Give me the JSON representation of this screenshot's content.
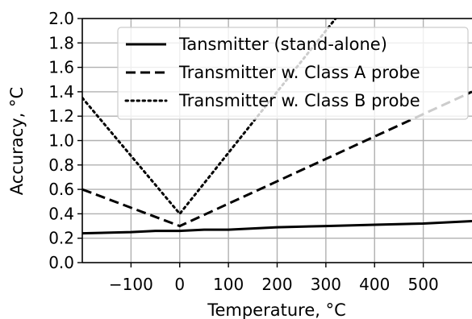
{
  "chart_data": {
    "type": "line",
    "xlabel": "Temperature, °C",
    "ylabel": "Accuracy, °C",
    "xlim": [
      -200,
      600
    ],
    "ylim": [
      0.0,
      2.0
    ],
    "xticks": [
      -100,
      0,
      100,
      200,
      300,
      400,
      500
    ],
    "xtick_labels": [
      "−100",
      "0",
      "100",
      "200",
      "300",
      "400",
      "500"
    ],
    "yticks": [
      0.0,
      0.2,
      0.4,
      0.6,
      0.8,
      1.0,
      1.2,
      1.4,
      1.6,
      1.8,
      2.0
    ],
    "ytick_labels": [
      "0.0",
      "0.2",
      "0.4",
      "0.6",
      "0.8",
      "1.0",
      "1.2",
      "1.4",
      "1.6",
      "1.8",
      "2.0"
    ],
    "grid": true,
    "legend_position": "top-right",
    "series": [
      {
        "name": "Tansmitter (stand-alone)",
        "style": "solid",
        "color": "#000000",
        "x": [
          -200,
          -100,
          -50,
          0,
          50,
          100,
          200,
          300,
          400,
          500,
          600
        ],
        "y": [
          0.24,
          0.25,
          0.26,
          0.26,
          0.27,
          0.27,
          0.29,
          0.3,
          0.31,
          0.32,
          0.34
        ]
      },
      {
        "name": "Transmitter w. Class A probe",
        "style": "dashed",
        "color": "#000000",
        "x": [
          -200,
          0,
          600
        ],
        "y": [
          0.6,
          0.3,
          1.4
        ]
      },
      {
        "name": "Transmitter w. Class B probe",
        "style": "dotted",
        "color": "#000000",
        "x": [
          -200,
          0,
          330
        ],
        "y": [
          1.35,
          0.4,
          2.05
        ]
      }
    ]
  }
}
